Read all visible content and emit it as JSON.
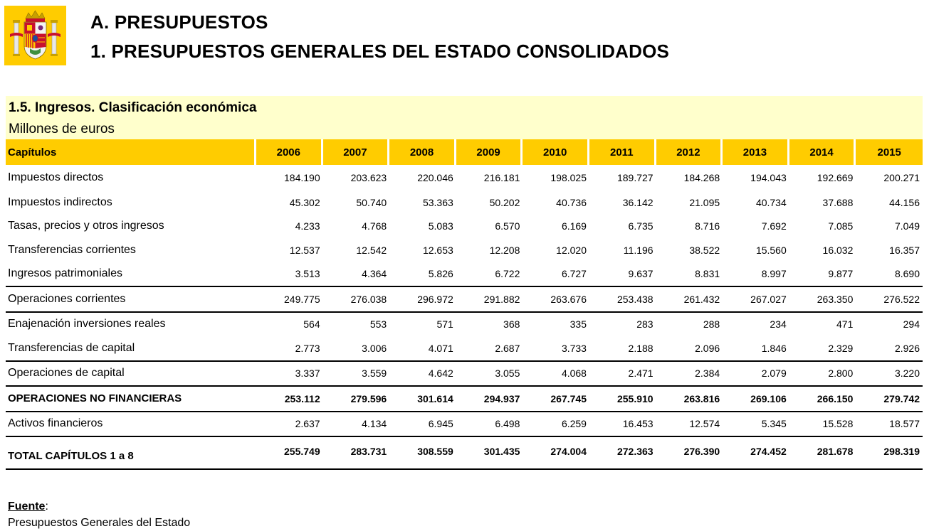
{
  "header": {
    "title_line1": "A. PRESUPUESTOS",
    "title_line2": "1. PRESUPUESTOS GENERALES DEL ESTADO CONSOLIDADOS"
  },
  "section": {
    "title": "1.5. Ingresos. Clasificación económica",
    "unit": "Millones de euros"
  },
  "table": {
    "label_header": "Capítulos",
    "years": [
      "2006",
      "2007",
      "2008",
      "2009",
      "2010",
      "2011",
      "2012",
      "2013",
      "2014",
      "2015"
    ],
    "rows": [
      {
        "label": "Impuestos directos",
        "values": [
          "184.190",
          "203.623",
          "220.046",
          "216.181",
          "198.025",
          "189.727",
          "184.268",
          "194.043",
          "192.669",
          "200.271"
        ]
      },
      {
        "label": "Impuestos indirectos",
        "values": [
          "45.302",
          "50.740",
          "53.363",
          "50.202",
          "40.736",
          "36.142",
          "21.095",
          "40.734",
          "37.688",
          "44.156"
        ]
      },
      {
        "label": "Tasas, precios y otros ingresos",
        "values": [
          "4.233",
          "4.768",
          "5.083",
          "6.570",
          "6.169",
          "6.735",
          "8.716",
          "7.692",
          "7.085",
          "7.049"
        ]
      },
      {
        "label": "Transferencias corrientes",
        "values": [
          "12.537",
          "12.542",
          "12.653",
          "12.208",
          "12.020",
          "11.196",
          "38.522",
          "15.560",
          "16.032",
          "16.357"
        ]
      },
      {
        "label": "Ingresos patrimoniales",
        "values": [
          "3.513",
          "4.364",
          "5.826",
          "6.722",
          "6.727",
          "9.637",
          "8.831",
          "8.997",
          "9.877",
          "8.690"
        ]
      },
      {
        "label": "Operaciones corrientes",
        "values": [
          "249.775",
          "276.038",
          "296.972",
          "291.882",
          "263.676",
          "253.438",
          "261.432",
          "267.027",
          "263.350",
          "276.522"
        ]
      },
      {
        "label": "Enajenación inversiones reales",
        "values": [
          "564",
          "553",
          "571",
          "368",
          "335",
          "283",
          "288",
          "234",
          "471",
          "294"
        ]
      },
      {
        "label": "Transferencias de capital",
        "values": [
          "2.773",
          "3.006",
          "4.071",
          "2.687",
          "3.733",
          "2.188",
          "2.096",
          "1.846",
          "2.329",
          "2.926"
        ]
      },
      {
        "label": "Operaciones de capital",
        "values": [
          "3.337",
          "3.559",
          "4.642",
          "3.055",
          "4.068",
          "2.471",
          "2.384",
          "2.079",
          "2.800",
          "3.220"
        ]
      },
      {
        "label": "OPERACIONES NO FINANCIERAS",
        "values": [
          "253.112",
          "279.596",
          "301.614",
          "294.937",
          "267.745",
          "255.910",
          "263.816",
          "269.106",
          "266.150",
          "279.742"
        ]
      },
      {
        "label": "Activos financieros",
        "values": [
          "2.637",
          "4.134",
          "6.945",
          "6.498",
          "6.259",
          "16.453",
          "12.574",
          "5.345",
          "15.528",
          "18.577"
        ]
      },
      {
        "label": "TOTAL CAPÍTULOS 1 a 8",
        "values": [
          "255.749",
          "283.731",
          "308.559",
          "301.435",
          "274.004",
          "272.363",
          "276.390",
          "274.452",
          "281.678",
          "298.319"
        ]
      }
    ]
  },
  "footer": {
    "source_label": "Fuente",
    "source_colon": ":",
    "source_text": "Presupuestos Generales del Estado"
  },
  "colors": {
    "header_band": "#ffcc00",
    "section_band": "#ffffcc",
    "emblem_red": "#c8102e"
  },
  "logo": {
    "icon": "coat-of-arms-of-spain-icon"
  }
}
